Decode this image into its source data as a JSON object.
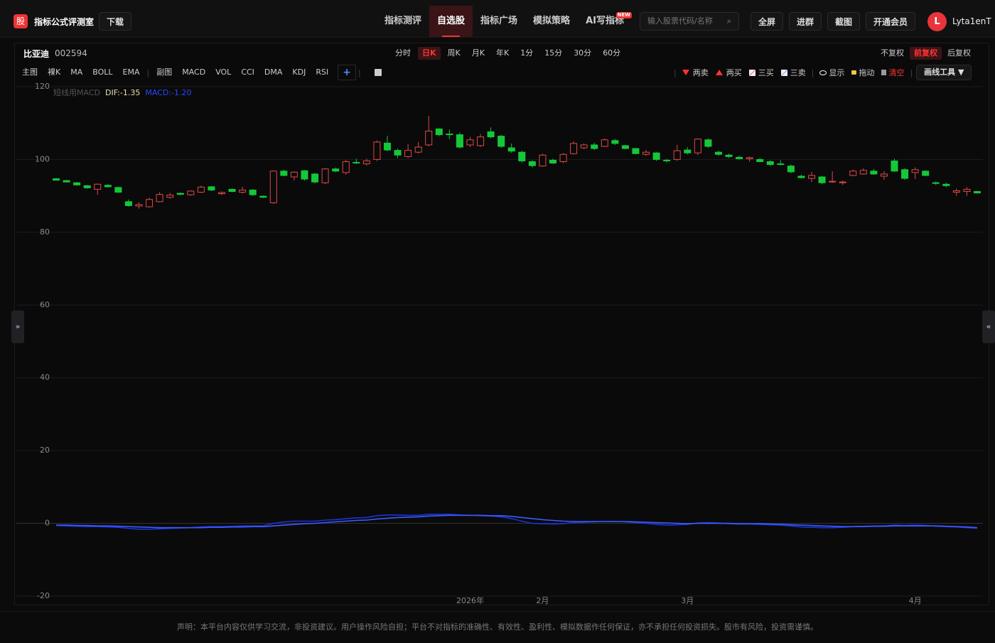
{
  "header": {
    "logo": "股",
    "brand": "指标公式评测室",
    "download": "下载",
    "nav": [
      "指标测评",
      "自选股",
      "指标广场",
      "模拟策略",
      "AI写指标"
    ],
    "new_badge": "NEW",
    "search_placeholder": "输入股票代码/名称",
    "buttons": [
      "全屏",
      "进群",
      "截图",
      "开通会员"
    ],
    "avatar": "L",
    "user": "Lyta1enT"
  },
  "toolbar": {
    "stock_name": "比亚迪",
    "stock_code": "002594",
    "periods": [
      "分时",
      "日K",
      "周K",
      "月K",
      "年K",
      "1分",
      "15分",
      "30分",
      "60分"
    ],
    "adjust": [
      "不复权",
      "前复权",
      "后复权"
    ],
    "indicators": [
      "主图",
      "裸K",
      "MA",
      "BOLL",
      "EMA",
      "副图",
      "MACD",
      "VOL",
      "CCI",
      "DMA",
      "KDJ",
      "RSI"
    ],
    "add": "+",
    "tools": [
      "两卖",
      "两买",
      "三买",
      "三卖",
      "显示",
      "拖动",
      "清空"
    ],
    "draw_tools": "画线工具 ▼"
  },
  "chart_data": {
    "type": "candlestick",
    "ylim": [
      -20,
      120
    ],
    "yticks": [
      -20,
      0,
      20,
      40,
      60,
      80,
      100,
      120
    ],
    "grid": true,
    "up_color": "#e04848",
    "down_color": "#14c83a",
    "categories": [
      null,
      null,
      null,
      null,
      null,
      null,
      null,
      null,
      null,
      null,
      null,
      null,
      null,
      null,
      null,
      null,
      null,
      null,
      null,
      null,
      null,
      null,
      null,
      null,
      null,
      null,
      null,
      null,
      null,
      null,
      null,
      null,
      null,
      null,
      null,
      null,
      null,
      null,
      null,
      null,
      "2026年",
      null,
      null,
      null,
      null,
      null,
      null,
      "2月",
      null,
      null,
      null,
      null,
      null,
      null,
      null,
      null,
      null,
      null,
      null,
      null,
      null,
      "3月",
      null,
      null,
      null,
      null,
      null,
      null,
      null,
      null,
      null,
      null,
      null,
      null,
      null,
      null,
      null,
      null,
      null,
      null,
      null,
      null,
      null,
      "4月",
      null,
      null,
      null,
      null,
      null,
      null
    ],
    "open": [
      94.7,
      94.2,
      93.6,
      92.8,
      91.8,
      92.9,
      92.3,
      88.4,
      87.2,
      87.0,
      88.4,
      89.6,
      90.7,
      90.3,
      91.0,
      92.5,
      90.6,
      91.8,
      91.0,
      91.6,
      89.9,
      88.1,
      96.8,
      95.2,
      96.9,
      96.0,
      93.6,
      97.4,
      96.4,
      99.2,
      98.8,
      100.0,
      104.5,
      102.5,
      100.8,
      102.0,
      104.0,
      108.4,
      107.0,
      106.8,
      104.0,
      103.8,
      107.6,
      106.4,
      103.2,
      102.0,
      99.4,
      98.2,
      99.8,
      99.4,
      101.6,
      103.2,
      104.0,
      103.6,
      105.2,
      103.8,
      103.0,
      101.4,
      101.8,
      99.8,
      100.0,
      102.6,
      101.8,
      105.4,
      102.0,
      101.2,
      100.6,
      100.2,
      100.0,
      99.4,
      98.8,
      98.2,
      95.4,
      94.8,
      95.2,
      93.8,
      93.6,
      95.6,
      96.0,
      96.8,
      95.4,
      99.6,
      97.2,
      96.4,
      96.8,
      93.6,
      93.2,
      91.0,
      91.2,
      91.2
    ],
    "high": [
      94.9,
      94.4,
      93.8,
      93.0,
      93.4,
      93.2,
      92.5,
      89.0,
      88.2,
      89.5,
      91.0,
      90.8,
      90.9,
      91.5,
      92.8,
      92.7,
      91.2,
      92.0,
      92.5,
      91.8,
      90.1,
      97.0,
      97.2,
      96.8,
      97.1,
      96.3,
      97.6,
      97.8,
      99.9,
      100.2,
      100.2,
      105.2,
      106.5,
      103.0,
      104.2,
      104.8,
      112.0,
      108.6,
      108.2,
      107.4,
      106.2,
      107.0,
      108.8,
      106.8,
      104.4,
      102.4,
      99.8,
      101.6,
      100.2,
      101.8,
      105.0,
      104.4,
      104.6,
      105.8,
      105.6,
      104.0,
      103.2,
      102.6,
      102.0,
      100.2,
      104.0,
      103.4,
      105.8,
      105.8,
      102.4,
      101.6,
      101.0,
      100.8,
      100.4,
      99.8,
      99.8,
      98.6,
      95.8,
      96.6,
      95.4,
      96.8,
      94.2,
      97.2,
      97.6,
      97.4,
      96.8,
      100.2,
      97.6,
      97.8,
      97.0,
      94.0,
      93.6,
      92.0,
      92.4,
      91.4
    ],
    "low": [
      94.2,
      93.7,
      92.8,
      92.0,
      90.3,
      92.3,
      90.8,
      87.0,
      86.5,
      86.8,
      88.2,
      89.2,
      90.2,
      90.0,
      90.8,
      91.3,
      90.2,
      91.0,
      90.6,
      90.0,
      89.4,
      87.8,
      95.4,
      94.2,
      94.2,
      93.4,
      93.2,
      96.5,
      95.8,
      98.8,
      98.3,
      99.6,
      102.3,
      100.4,
      100.4,
      101.6,
      103.6,
      106.4,
      105.6,
      103.0,
      103.4,
      103.4,
      105.8,
      103.2,
      101.8,
      99.2,
      97.8,
      98.0,
      98.8,
      99.0,
      101.4,
      102.8,
      102.6,
      103.4,
      104.0,
      102.8,
      101.4,
      101.0,
      99.6,
      99.2,
      99.6,
      101.4,
      101.2,
      103.2,
      101.0,
      100.4,
      100.0,
      99.4,
      99.2,
      98.2,
      98.4,
      96.2,
      94.8,
      93.8,
      93.2,
      93.6,
      93.0,
      95.4,
      95.8,
      95.8,
      94.4,
      96.6,
      94.4,
      94.6,
      95.4,
      93.0,
      92.4,
      90.0,
      90.0,
      90.6
    ],
    "close": [
      94.3,
      93.8,
      93.0,
      92.2,
      93.2,
      92.5,
      91.0,
      87.3,
      87.6,
      89.0,
      90.4,
      90.2,
      90.4,
      91.3,
      92.4,
      91.6,
      90.9,
      91.2,
      91.6,
      90.3,
      89.6,
      96.8,
      95.6,
      96.5,
      94.6,
      93.8,
      97.4,
      96.8,
      99.4,
      99.0,
      99.6,
      104.8,
      102.6,
      101.2,
      102.5,
      103.4,
      107.8,
      106.8,
      106.8,
      103.4,
      105.4,
      106.2,
      106.2,
      103.6,
      102.3,
      99.6,
      98.3,
      101.2,
      99.0,
      101.4,
      104.4,
      104.0,
      103.0,
      105.4,
      104.4,
      103.0,
      101.6,
      102.0,
      100.0,
      99.6,
      102.4,
      101.8,
      105.6,
      103.6,
      101.4,
      100.8,
      100.2,
      100.5,
      99.4,
      98.6,
      98.6,
      96.6,
      95.0,
      95.6,
      93.6,
      94.0,
      93.8,
      96.8,
      97.0,
      96.0,
      96.0,
      96.8,
      94.8,
      97.2,
      95.6,
      93.4,
      92.8,
      91.4,
      91.8,
      90.8
    ],
    "macd_title": "短线用MACD",
    "dif_label": "DIF:-1.35",
    "macd_label": "MACD:-1.20",
    "dif_color": "#1a34d8",
    "macd_color": "#3b5bff",
    "dif": [
      -0.6,
      -0.7,
      -0.8,
      -0.9,
      -0.9,
      -1.0,
      -1.1,
      -1.4,
      -1.6,
      -1.6,
      -1.5,
      -1.4,
      -1.3,
      -1.2,
      -1.0,
      -0.9,
      -0.9,
      -0.8,
      -0.7,
      -0.7,
      -0.7,
      0.0,
      0.4,
      0.6,
      0.6,
      0.6,
      0.9,
      1.0,
      1.3,
      1.5,
      1.6,
      2.1,
      2.3,
      2.3,
      2.2,
      2.2,
      2.5,
      2.5,
      2.5,
      2.3,
      2.2,
      2.1,
      2.0,
      1.8,
      1.3,
      0.6,
      0.0,
      -0.1,
      -0.2,
      -0.1,
      0.2,
      0.3,
      0.4,
      0.5,
      0.5,
      0.4,
      0.2,
      0.0,
      -0.3,
      -0.5,
      -0.4,
      -0.3,
      0.1,
      0.2,
      0.1,
      -0.1,
      -0.2,
      -0.2,
      -0.3,
      -0.4,
      -0.5,
      -0.7,
      -1.0,
      -1.1,
      -1.2,
      -1.2,
      -1.1,
      -0.9,
      -0.8,
      -0.7,
      -0.7,
      -0.5,
      -0.6,
      -0.5,
      -0.6,
      -0.8,
      -0.9,
      -1.0,
      -1.2,
      -1.35
    ],
    "macd": [
      -0.5,
      -0.5,
      -0.6,
      -0.6,
      -0.7,
      -0.7,
      -0.8,
      -0.9,
      -1.0,
      -1.1,
      -1.2,
      -1.2,
      -1.2,
      -1.2,
      -1.2,
      -1.1,
      -1.1,
      -1.0,
      -1.0,
      -0.9,
      -0.9,
      -0.7,
      -0.5,
      -0.3,
      -0.1,
      0.0,
      0.2,
      0.4,
      0.6,
      0.8,
      0.9,
      1.2,
      1.4,
      1.6,
      1.7,
      1.8,
      2.0,
      2.1,
      2.2,
      2.2,
      2.2,
      2.2,
      2.1,
      2.1,
      1.9,
      1.6,
      1.3,
      1.0,
      0.8,
      0.6,
      0.5,
      0.5,
      0.5,
      0.5,
      0.5,
      0.5,
      0.4,
      0.3,
      0.2,
      0.1,
      0.0,
      -0.1,
      0.0,
      0.0,
      0.0,
      0.0,
      -0.1,
      -0.1,
      -0.1,
      -0.2,
      -0.3,
      -0.4,
      -0.5,
      -0.6,
      -0.7,
      -0.8,
      -0.9,
      -0.9,
      -0.9,
      -0.8,
      -0.8,
      -0.7,
      -0.7,
      -0.7,
      -0.7,
      -0.7,
      -0.8,
      -0.9,
      -1.0,
      -1.2
    ]
  },
  "footer": {
    "disclaimer": "声明：本平台内容仅供学习交流，非投资建议。用户操作风险自担；平台不对指标的准确性、有效性、盈利性、模拟数据作任何保证，亦不承担任何投资损失。股市有风险，投资需谨慎。"
  }
}
